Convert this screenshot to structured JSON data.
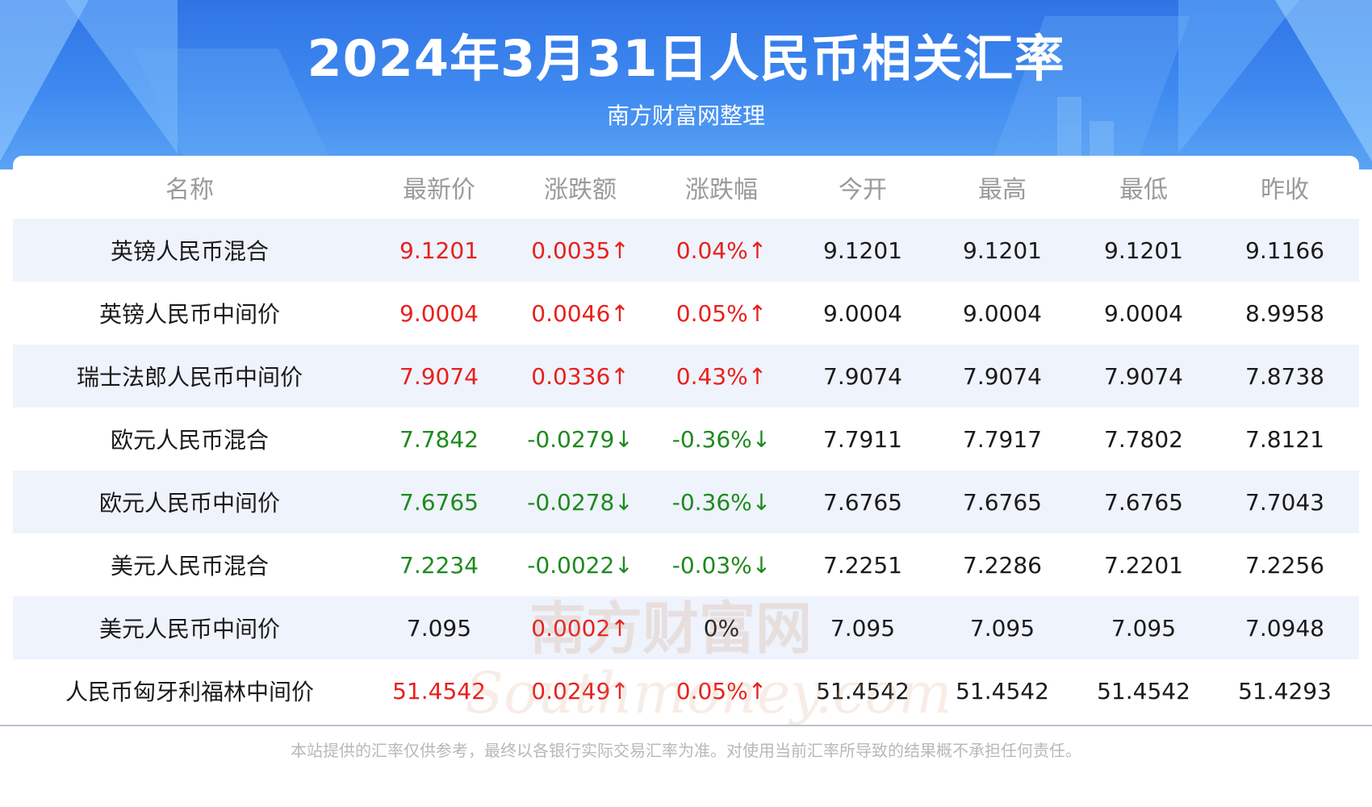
{
  "header": {
    "title": "2024年3月31日人民币相关汇率",
    "subtitle": "南方财富网整理"
  },
  "table": {
    "columns": [
      "名称",
      "最新价",
      "涨跌额",
      "涨跌幅",
      "今开",
      "最高",
      "最低",
      "昨收"
    ],
    "rows": [
      {
        "name": "英镑人民币混合",
        "latest": "9.1201",
        "change": "0.0035↑",
        "pct": "0.04%↑",
        "open": "9.1201",
        "high": "9.1201",
        "low": "9.1201",
        "prev": "9.1166",
        "trend": "up"
      },
      {
        "name": "英镑人民币中间价",
        "latest": "9.0004",
        "change": "0.0046↑",
        "pct": "0.05%↑",
        "open": "9.0004",
        "high": "9.0004",
        "low": "9.0004",
        "prev": "8.9958",
        "trend": "up"
      },
      {
        "name": "瑞士法郎人民币中间价",
        "latest": "7.9074",
        "change": "0.0336↑",
        "pct": "0.43%↑",
        "open": "7.9074",
        "high": "7.9074",
        "low": "7.9074",
        "prev": "7.8738",
        "trend": "up"
      },
      {
        "name": "欧元人民币混合",
        "latest": "7.7842",
        "change": "-0.0279↓",
        "pct": "-0.36%↓",
        "open": "7.7911",
        "high": "7.7917",
        "low": "7.7802",
        "prev": "7.8121",
        "trend": "down"
      },
      {
        "name": "欧元人民币中间价",
        "latest": "7.6765",
        "change": "-0.0278↓",
        "pct": "-0.36%↓",
        "open": "7.6765",
        "high": "7.6765",
        "low": "7.6765",
        "prev": "7.7043",
        "trend": "down"
      },
      {
        "name": "美元人民币混合",
        "latest": "7.2234",
        "change": "-0.0022↓",
        "pct": "-0.03%↓",
        "open": "7.2251",
        "high": "7.2286",
        "low": "7.2201",
        "prev": "7.2256",
        "trend": "down"
      },
      {
        "name": "美元人民币中间价",
        "latest": "7.095",
        "change": "0.0002↑",
        "pct": "0%",
        "open": "7.095",
        "high": "7.095",
        "low": "7.095",
        "prev": "7.0948",
        "trend": "flat"
      },
      {
        "name": "人民币匈牙利福林中间价",
        "latest": "51.4542",
        "change": "0.0249↑",
        "pct": "0.05%↑",
        "open": "51.4542",
        "high": "51.4542",
        "low": "51.4542",
        "prev": "51.4293",
        "trend": "up"
      }
    ]
  },
  "watermark": {
    "line1": "南方财富网",
    "line2": "Southmoney.com"
  },
  "footer": {
    "disclaimer": "本站提供的汇率仅供参考，最终以各银行实际交易汇率为准。对使用当前汇率所导致的结果概不承担任何责任。"
  },
  "colors": {
    "up": "#e8201d",
    "down": "#1d8a1d",
    "header_blue": "#3f8af0",
    "row_shade": "#eef3fc"
  }
}
